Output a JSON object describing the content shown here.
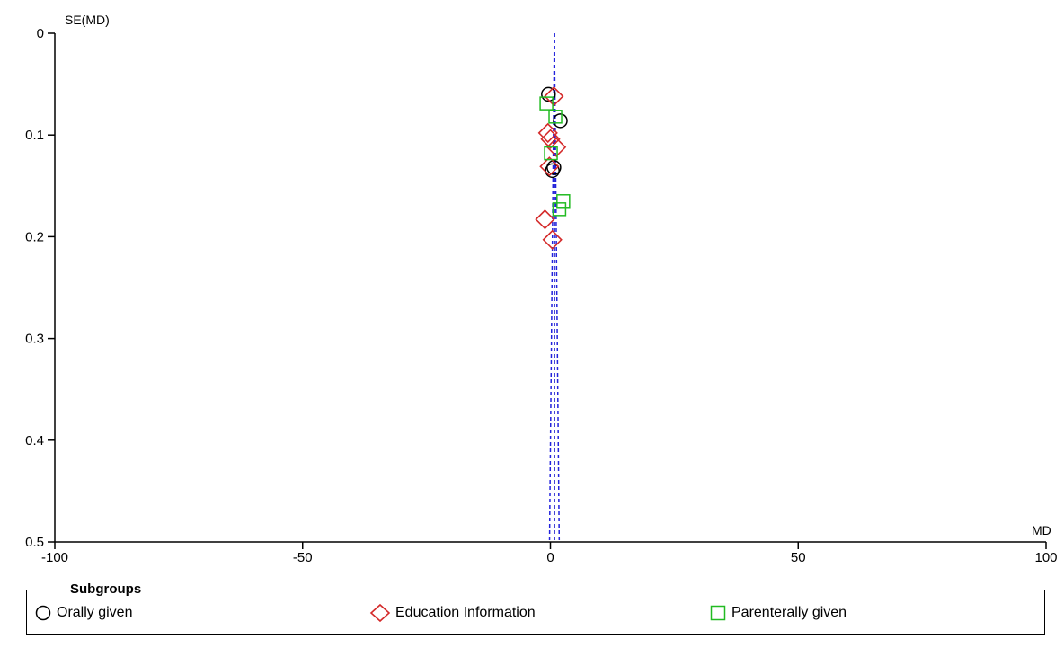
{
  "chart_data": {
    "type": "scatter",
    "xlabel": "MD",
    "ylabel": "SE(MD)",
    "xlim": [
      -100,
      100
    ],
    "ylim": [
      0,
      0.5
    ],
    "y_inverted": true,
    "xticks": [
      "-100",
      "-50",
      "0",
      "50",
      "100"
    ],
    "yticks": [
      "0",
      "0.1",
      "0.2",
      "0.3",
      "0.4",
      "0.5"
    ],
    "xtick_values": [
      -100,
      -50,
      0,
      50,
      100
    ],
    "ytick_values": [
      0,
      0.1,
      0.2,
      0.3,
      0.4,
      0.5
    ],
    "pooled_estimate": 0.8,
    "funnel_lines": [
      {
        "from": [
          0.8,
          0
        ],
        "to": [
          -0.18,
          0.5
        ]
      },
      {
        "from": [
          0.8,
          0
        ],
        "to": [
          1.78,
          0.5
        ]
      }
    ],
    "legend_title": "Subgroups",
    "legend_position": "bottom",
    "series": [
      {
        "name": "Orally given",
        "marker": "circle",
        "color": "#000000",
        "points": [
          {
            "x": -0.4,
            "y": 0.06
          },
          {
            "x": 2.0,
            "y": 0.086
          },
          {
            "x": 0.7,
            "y": 0.132
          },
          {
            "x": 0.4,
            "y": 0.135
          }
        ]
      },
      {
        "name": "Education Information",
        "marker": "diamond",
        "color": "#d42a2a",
        "points": [
          {
            "x": 0.7,
            "y": 0.062
          },
          {
            "x": -0.5,
            "y": 0.098
          },
          {
            "x": 0.0,
            "y": 0.104
          },
          {
            "x": 1.2,
            "y": 0.112
          },
          {
            "x": -0.2,
            "y": 0.131
          },
          {
            "x": -1.1,
            "y": 0.183
          },
          {
            "x": 0.4,
            "y": 0.203
          }
        ]
      },
      {
        "name": "Parenterally given",
        "marker": "square",
        "color": "#22bb22",
        "points": [
          {
            "x": -0.8,
            "y": 0.069
          },
          {
            "x": 1.0,
            "y": 0.082
          },
          {
            "x": 0.1,
            "y": 0.118
          },
          {
            "x": 2.6,
            "y": 0.165
          },
          {
            "x": 1.8,
            "y": 0.173
          }
        ]
      }
    ]
  }
}
